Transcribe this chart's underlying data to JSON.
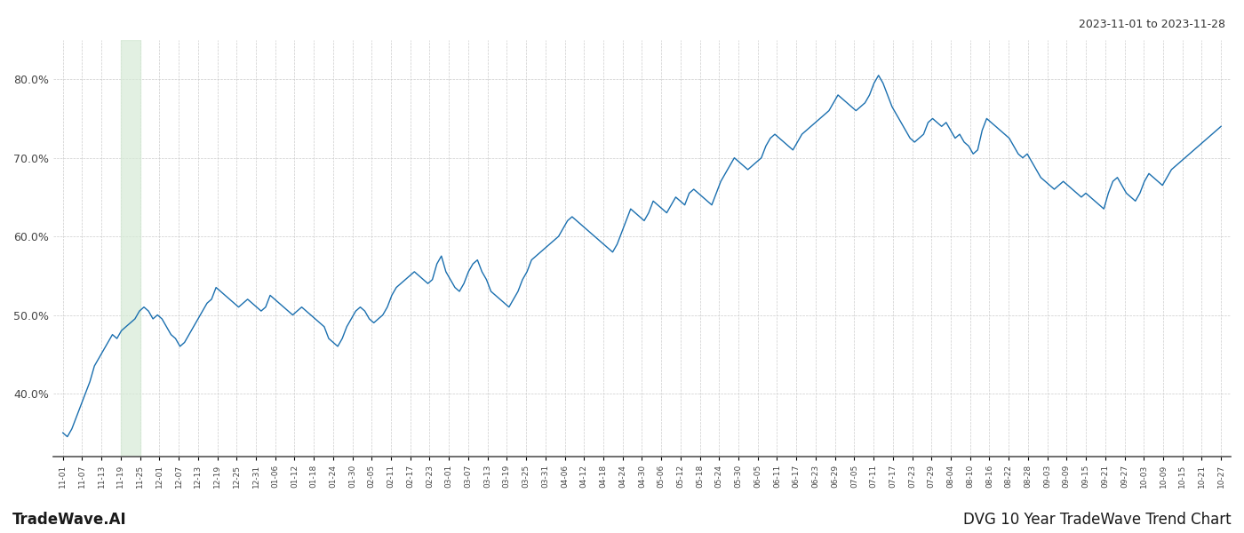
{
  "title_right": "2023-11-01 to 2023-11-28",
  "footer_left": "TradeWave.AI",
  "footer_right": "DVG 10 Year TradeWave Trend Chart",
  "line_color": "#1a6faf",
  "line_width": 1.0,
  "highlight_color": "#d6ead6",
  "highlight_alpha": 0.7,
  "ylim": [
    32,
    85
  ],
  "yticks": [
    40.0,
    50.0,
    60.0,
    70.0,
    80.0
  ],
  "background_color": "#ffffff",
  "grid_color": "#cccccc",
  "x_labels": [
    "11-01",
    "11-07",
    "11-13",
    "11-19",
    "11-25",
    "12-01",
    "12-07",
    "12-13",
    "12-19",
    "12-25",
    "12-31",
    "01-06",
    "01-12",
    "01-18",
    "01-24",
    "01-30",
    "02-05",
    "02-11",
    "02-17",
    "02-23",
    "03-01",
    "03-07",
    "03-13",
    "03-19",
    "03-25",
    "03-31",
    "04-06",
    "04-12",
    "04-18",
    "04-24",
    "04-30",
    "05-06",
    "05-12",
    "05-18",
    "05-24",
    "05-30",
    "06-05",
    "06-11",
    "06-17",
    "06-23",
    "06-29",
    "07-05",
    "07-11",
    "07-17",
    "07-23",
    "07-29",
    "08-04",
    "08-10",
    "08-16",
    "08-22",
    "08-28",
    "09-03",
    "09-09",
    "09-15",
    "09-21",
    "09-27",
    "10-03",
    "10-09",
    "10-15",
    "10-21",
    "10-27"
  ],
  "highlight_start_label": "11-19",
  "highlight_end_label": "11-25",
  "y_values": [
    35.0,
    34.5,
    35.5,
    37.0,
    38.5,
    40.0,
    41.5,
    43.5,
    44.5,
    45.5,
    46.5,
    47.5,
    47.0,
    48.0,
    48.5,
    49.0,
    49.5,
    50.5,
    51.0,
    50.5,
    49.5,
    50.0,
    49.5,
    48.5,
    47.5,
    47.0,
    46.0,
    46.5,
    47.5,
    48.5,
    49.5,
    50.5,
    51.5,
    52.0,
    53.5,
    53.0,
    52.5,
    52.0,
    51.5,
    51.0,
    51.5,
    52.0,
    51.5,
    51.0,
    50.5,
    51.0,
    52.5,
    52.0,
    51.5,
    51.0,
    50.5,
    50.0,
    50.5,
    51.0,
    50.5,
    50.0,
    49.5,
    49.0,
    48.5,
    47.0,
    46.5,
    46.0,
    47.0,
    48.5,
    49.5,
    50.5,
    51.0,
    50.5,
    49.5,
    49.0,
    49.5,
    50.0,
    51.0,
    52.5,
    53.5,
    54.0,
    54.5,
    55.0,
    55.5,
    55.0,
    54.5,
    54.0,
    54.5,
    56.5,
    57.5,
    55.5,
    54.5,
    53.5,
    53.0,
    54.0,
    55.5,
    56.5,
    57.0,
    55.5,
    54.5,
    53.0,
    52.5,
    52.0,
    51.5,
    51.0,
    52.0,
    53.0,
    54.5,
    55.5,
    57.0,
    57.5,
    58.0,
    58.5,
    59.0,
    59.5,
    60.0,
    61.0,
    62.0,
    62.5,
    62.0,
    61.5,
    61.0,
    60.5,
    60.0,
    59.5,
    59.0,
    58.5,
    58.0,
    59.0,
    60.5,
    62.0,
    63.5,
    63.0,
    62.5,
    62.0,
    63.0,
    64.5,
    64.0,
    63.5,
    63.0,
    64.0,
    65.0,
    64.5,
    64.0,
    65.5,
    66.0,
    65.5,
    65.0,
    64.5,
    64.0,
    65.5,
    67.0,
    68.0,
    69.0,
    70.0,
    69.5,
    69.0,
    68.5,
    69.0,
    69.5,
    70.0,
    71.5,
    72.5,
    73.0,
    72.5,
    72.0,
    71.5,
    71.0,
    72.0,
    73.0,
    73.5,
    74.0,
    74.5,
    75.0,
    75.5,
    76.0,
    77.0,
    78.0,
    77.5,
    77.0,
    76.5,
    76.0,
    76.5,
    77.0,
    78.0,
    79.5,
    80.5,
    79.5,
    78.0,
    76.5,
    75.5,
    74.5,
    73.5,
    72.5,
    72.0,
    72.5,
    73.0,
    74.5,
    75.0,
    74.5,
    74.0,
    74.5,
    73.5,
    72.5,
    73.0,
    72.0,
    71.5,
    70.5,
    71.0,
    73.5,
    75.0,
    74.5,
    74.0,
    73.5,
    73.0,
    72.5,
    71.5,
    70.5,
    70.0,
    70.5,
    69.5,
    68.5,
    67.5,
    67.0,
    66.5,
    66.0,
    66.5,
    67.0,
    66.5,
    66.0,
    65.5,
    65.0,
    65.5,
    65.0,
    64.5,
    64.0,
    63.5,
    65.5,
    67.0,
    67.5,
    66.5,
    65.5,
    65.0,
    64.5,
    65.5,
    67.0,
    68.0,
    67.5,
    67.0,
    66.5,
    67.5,
    68.5,
    69.0,
    69.5,
    70.0,
    70.5,
    71.0,
    71.5,
    72.0,
    72.5,
    73.0,
    73.5,
    74.0
  ]
}
